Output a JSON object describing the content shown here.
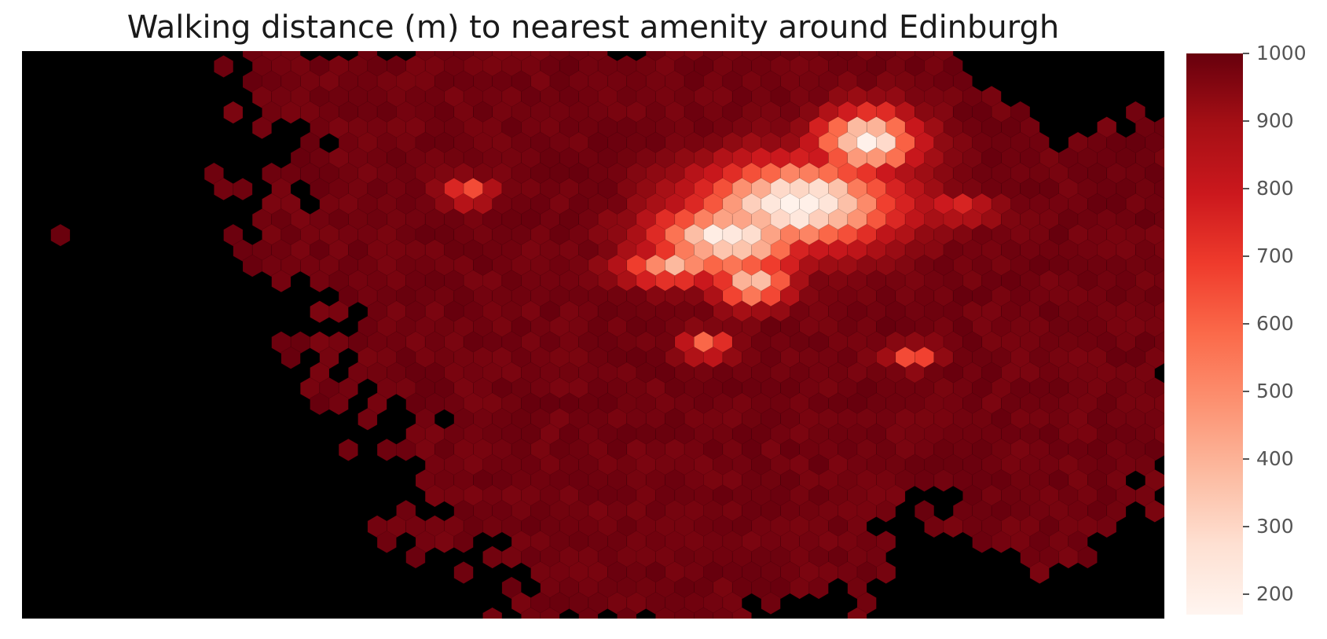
{
  "chart_data": {
    "type": "heatmap",
    "subtype": "hexbin map",
    "title": "Walking distance (m) to nearest amenity around Edinburgh",
    "background_color": "#000000",
    "colormap": "Reds",
    "colormap_stops": [
      "#fff5f0",
      "#fee0d2",
      "#fcbba1",
      "#fc9272",
      "#fb6a4a",
      "#ef3b2c",
      "#cb181d",
      "#a50f15",
      "#67000d"
    ],
    "colorbar": {
      "range": [
        170,
        1000
      ],
      "ticks": [
        "200",
        "300",
        "400",
        "500",
        "600",
        "700",
        "800",
        "900",
        "1000"
      ],
      "tick_values": [
        200,
        300,
        400,
        500,
        600,
        700,
        800,
        900,
        1000
      ]
    },
    "axes_visible": false,
    "grid": false,
    "hex_grid": {
      "columns": 60,
      "rows": 38
    },
    "value_description": "most cells at 900–1000 m; low-distance (150–400 m) cluster north-east of centre, with smaller hotspots around 650–750 m"
  }
}
